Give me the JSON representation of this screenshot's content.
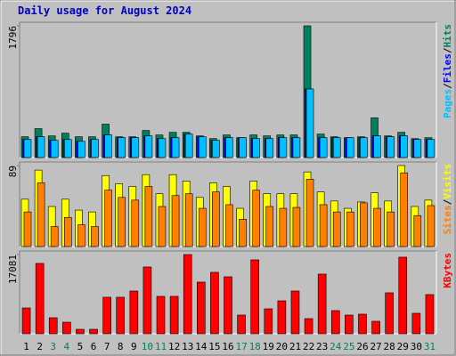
{
  "title": "Daily usage for August 2024",
  "categories": [
    "1",
    "2",
    "3",
    "4",
    "5",
    "6",
    "7",
    "8",
    "9",
    "10",
    "11",
    "12",
    "13",
    "14",
    "15",
    "16",
    "17",
    "18",
    "19",
    "20",
    "21",
    "22",
    "23",
    "24",
    "25",
    "26",
    "27",
    "28",
    "29",
    "30",
    "31"
  ],
  "category_colors": [
    "#000000",
    "#000000",
    "#00805c",
    "#00805c",
    "#000000",
    "#000000",
    "#000000",
    "#000000",
    "#000000",
    "#00805c",
    "#00805c",
    "#000000",
    "#000000",
    "#000000",
    "#000000",
    "#000000",
    "#00805c",
    "#00805c",
    "#000000",
    "#000000",
    "#000000",
    "#000000",
    "#000000",
    "#00805c",
    "#00805c",
    "#000000",
    "#000000",
    "#000000",
    "#000000",
    "#000000",
    "#00805c"
  ],
  "legend_separator": "/",
  "chart_data": [
    {
      "type": "bar",
      "ylim": [
        0,
        1796
      ],
      "yticks": [
        1796
      ],
      "series": [
        {
          "name": "Hits",
          "color": "#00805c",
          "values": [
            283,
            394,
            295,
            332,
            283,
            283,
            455,
            283,
            283,
            369,
            308,
            344,
            344,
            295,
            258,
            308,
            271,
            308,
            295,
            308,
            308,
            1796,
            320,
            283,
            271,
            283,
            541,
            295,
            344,
            258,
            271
          ]
        },
        {
          "name": "Files",
          "color": "#0000ff",
          "values": [
            246,
            283,
            234,
            246,
            221,
            246,
            308,
            271,
            271,
            295,
            258,
            271,
            320,
            283,
            234,
            271,
            271,
            258,
            258,
            271,
            271,
            935,
            271,
            271,
            271,
            271,
            295,
            283,
            295,
            246,
            246
          ]
        },
        {
          "name": "Pages",
          "color": "#00c0ff",
          "values": [
            246,
            283,
            234,
            246,
            221,
            246,
            308,
            271,
            271,
            295,
            258,
            271,
            320,
            283,
            234,
            271,
            271,
            258,
            258,
            271,
            271,
            935,
            271,
            271,
            271,
            271,
            295,
            283,
            295,
            246,
            246
          ]
        }
      ]
    },
    {
      "type": "bar",
      "ylim": [
        0,
        89
      ],
      "yticks": [
        89
      ],
      "series": [
        {
          "name": "Visits",
          "color": "#ffff00",
          "values": [
            52,
            84,
            44,
            52,
            40,
            38,
            78,
            69,
            66,
            79,
            58,
            79,
            72,
            54,
            70,
            66,
            42,
            72,
            58,
            58,
            58,
            82,
            60,
            50,
            42,
            49,
            59,
            50,
            89,
            44,
            51
          ]
        },
        {
          "name": "Sites",
          "color": "#ff8000",
          "values": [
            38,
            70,
            22,
            32,
            24,
            22,
            62,
            54,
            51,
            66,
            44,
            56,
            58,
            42,
            60,
            46,
            30,
            62,
            44,
            42,
            43,
            74,
            46,
            38,
            38,
            48,
            42,
            38,
            81,
            34,
            45
          ]
        }
      ]
    },
    {
      "type": "bar",
      "ylim": [
        0,
        17081
      ],
      "yticks": [
        17081
      ],
      "series": [
        {
          "name": "KBytes",
          "color": "#ff0000",
          "values": [
            5568,
            15168,
            3456,
            2496,
            960,
            960,
            7872,
            7872,
            9216,
            14400,
            8064,
            8064,
            17081,
            11136,
            13248,
            12288,
            4032,
            15936,
            5376,
            7104,
            9216,
            3264,
            12864,
            4992,
            4032,
            4224,
            2688,
            8832,
            16512,
            4416,
            8448
          ]
        }
      ]
    }
  ]
}
